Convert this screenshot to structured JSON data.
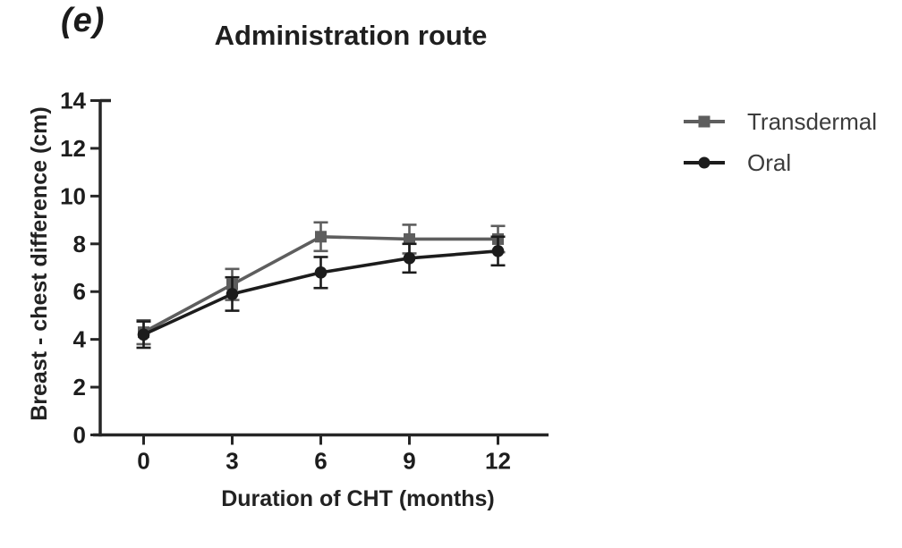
{
  "figure": {
    "panel_label": "(e)"
  },
  "chart_data": {
    "type": "line",
    "title": "Administration route",
    "xlabel": "Duration of CHT (months)",
    "ylabel": "Breast - chest difference (cm)",
    "x": [
      0,
      3,
      6,
      9,
      12
    ],
    "xticks": [
      "0",
      "3",
      "6",
      "9",
      "12"
    ],
    "yticks": [
      "0",
      "2",
      "4",
      "6",
      "8",
      "10",
      "12",
      "14"
    ],
    "ytick_values": [
      0,
      2,
      4,
      6,
      8,
      10,
      12,
      14
    ],
    "xlim": [
      0,
      12
    ],
    "ylim": [
      0,
      14
    ],
    "grid": false,
    "legend_position": "right",
    "error_bars": true,
    "series": [
      {
        "name": "Transdermal",
        "marker": "square",
        "color": "#5e5e5e",
        "values": [
          4.3,
          6.3,
          8.3,
          8.2,
          8.2
        ],
        "errors": [
          0.5,
          0.65,
          0.6,
          0.6,
          0.55
        ]
      },
      {
        "name": "Oral",
        "marker": "circle",
        "color": "#1c1c1c",
        "values": [
          4.2,
          5.9,
          6.8,
          7.4,
          7.7
        ],
        "errors": [
          0.55,
          0.7,
          0.65,
          0.6,
          0.6
        ]
      }
    ]
  },
  "style": {
    "axis_color": "#262626",
    "tick_text_color": "#1d1d1d",
    "legend_text_color": "#3c3c3c",
    "background": "#ffffff"
  }
}
